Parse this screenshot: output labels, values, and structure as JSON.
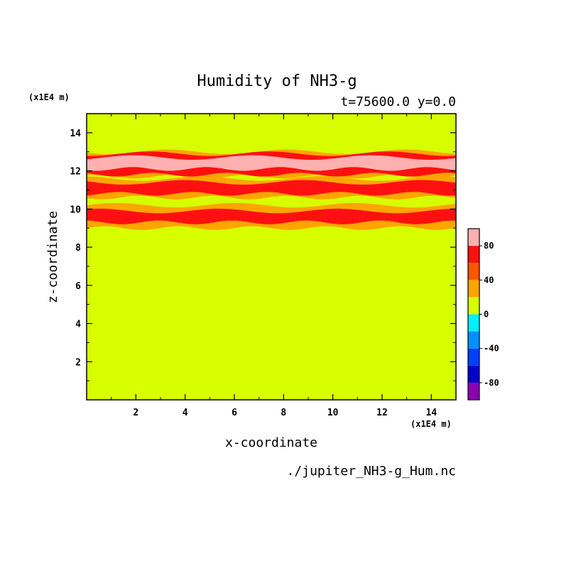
{
  "chart_data": {
    "type": "heatmap",
    "title": "Humidity of NH3-g",
    "subtitle": "t=75600.0 y=0.0",
    "xlabel": "x-coordinate",
    "ylabel": "z-coordinate",
    "x_unit": "(x1E4 m)",
    "y_unit": "(x1E4 m)",
    "source_label": "./jupiter_NH3-g_Hum.nc",
    "xlim": [
      0,
      15
    ],
    "ylim": [
      0,
      15
    ],
    "x_ticks": [
      2,
      4,
      6,
      8,
      10,
      12,
      14
    ],
    "y_ticks": [
      2,
      4,
      6,
      8,
      10,
      12,
      14
    ],
    "colorbar": {
      "levels": [
        -100,
        -80,
        -60,
        -40,
        -20,
        0,
        20,
        40,
        60,
        80,
        100
      ],
      "colors": [
        "#8b00b5",
        "#0000cc",
        "#0040ff",
        "#0090ff",
        "#00f0ff",
        "#d7ff00",
        "#ffa500",
        "#ff5500",
        "#ff1010",
        "#ffb0b0"
      ],
      "tick_labels": [
        "-80",
        "-40",
        "0",
        "40",
        "80"
      ],
      "tick_values": [
        -80,
        -40,
        0,
        40,
        80
      ]
    },
    "background_value": 10,
    "bands": [
      {
        "z_bottom": 9.0,
        "z_top": 10.2,
        "value": 30
      },
      {
        "z_bottom": 9.3,
        "z_top": 9.9,
        "value": 70
      },
      {
        "z_bottom": 10.6,
        "z_top": 11.6,
        "value": 30
      },
      {
        "z_bottom": 10.8,
        "z_top": 11.4,
        "value": 70
      },
      {
        "z_bottom": 11.7,
        "z_top": 13.0,
        "value": 30
      },
      {
        "z_bottom": 11.8,
        "z_top": 12.9,
        "value": 70
      },
      {
        "z_bottom": 12.1,
        "z_top": 12.7,
        "value": 90
      }
    ]
  }
}
